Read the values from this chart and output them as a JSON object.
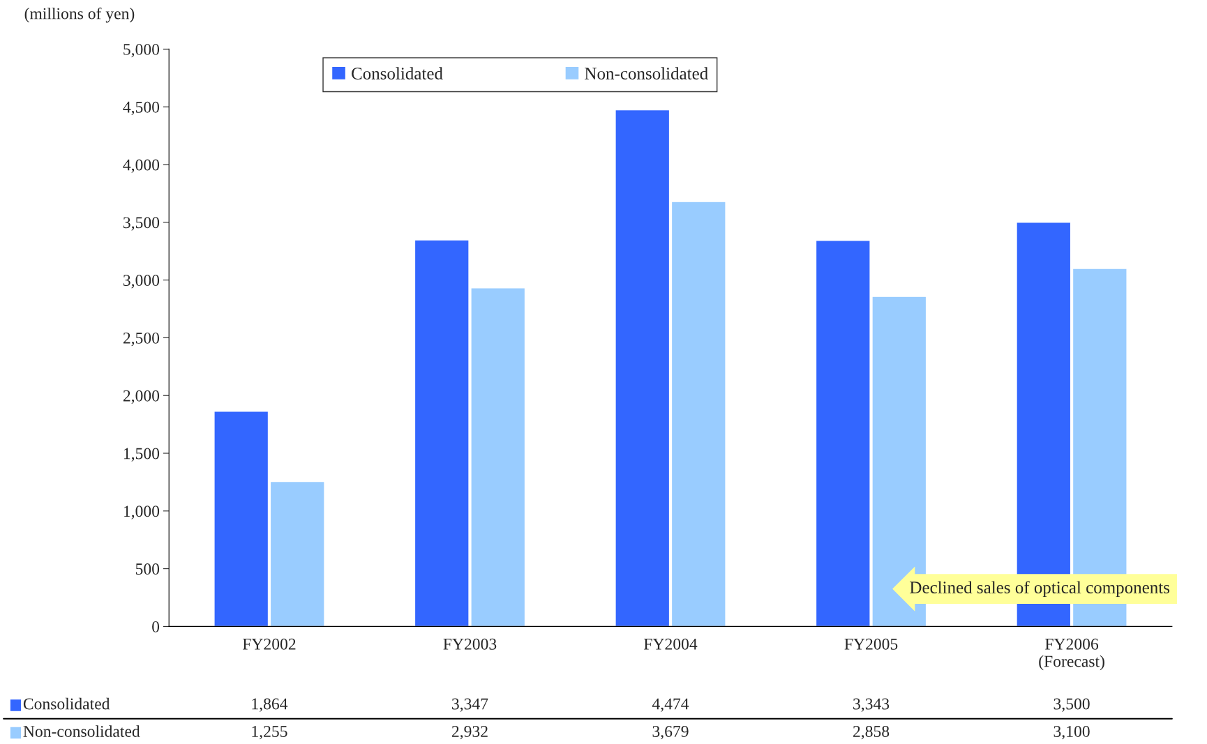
{
  "chart_data": {
    "type": "bar",
    "ylabel": "(millions of yen)",
    "categories": [
      "FY2002",
      "FY2003",
      "FY2004",
      "FY2005",
      "FY2006\n(Forecast)"
    ],
    "series": [
      {
        "name": "Consolidated",
        "color": "#3366ff",
        "values": [
          1864,
          3347,
          4474,
          3343,
          3500
        ],
        "value_labels": [
          "1,864",
          "3,347",
          "4,474",
          "3,343",
          "3,500"
        ]
      },
      {
        "name": "Non-consolidated",
        "color": "#99ccff",
        "values": [
          1255,
          2932,
          3679,
          2858,
          3100
        ],
        "value_labels": [
          "1,255",
          "2,932",
          "3,679",
          "2,858",
          "3,100"
        ]
      }
    ],
    "ylim": [
      0,
      5000
    ],
    "yticks": [
      {
        "value": 0,
        "label": "0"
      },
      {
        "value": 500,
        "label": "500"
      },
      {
        "value": 1000,
        "label": "1,000"
      },
      {
        "value": 1500,
        "label": "1,500"
      },
      {
        "value": 2000,
        "label": "2,000"
      },
      {
        "value": 2500,
        "label": "2,500"
      },
      {
        "value": 3000,
        "label": "3,000"
      },
      {
        "value": 3500,
        "label": "3,500"
      },
      {
        "value": 4000,
        "label": "4,000"
      },
      {
        "value": 4500,
        "label": "4,500"
      },
      {
        "value": 5000,
        "label": "5,000"
      }
    ],
    "annotations": [
      "Declined sales of optical components"
    ],
    "legend": "top",
    "grid": false
  }
}
